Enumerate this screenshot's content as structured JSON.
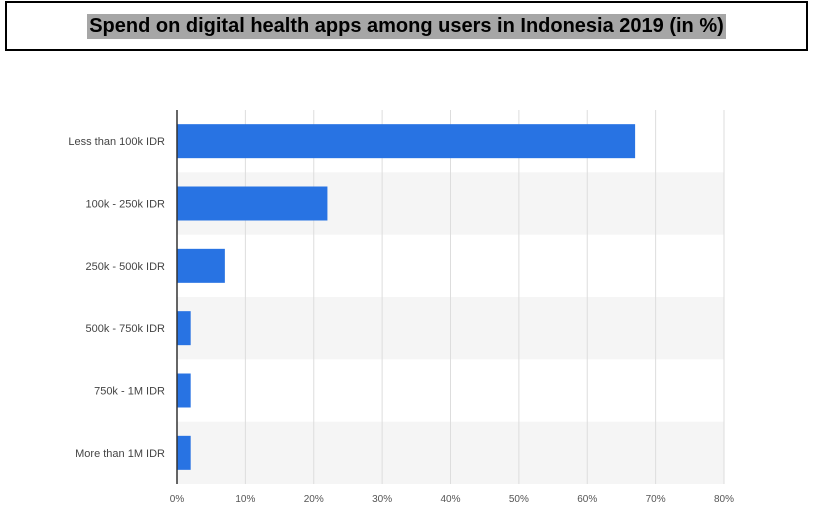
{
  "title": "Spend on digital health apps among users in Indonesia 2019 (in %)",
  "colors": {
    "bar": "#2873e3",
    "stripe": "#f5f5f5",
    "grid": "#dddddd",
    "axis": "#333333"
  },
  "chart_data": {
    "type": "bar",
    "orientation": "horizontal",
    "title": "Spend on digital health apps among users in Indonesia 2019 (in %)",
    "categories": [
      "Less than 100k IDR",
      "100k - 250k IDR",
      "250k - 500k IDR",
      "500k - 750k IDR",
      "750k - 1M IDR",
      "More than 1M IDR"
    ],
    "values": [
      67,
      22,
      7,
      2,
      2,
      2
    ],
    "xlim": [
      0,
      80
    ],
    "xticks": [
      0,
      10,
      20,
      30,
      40,
      50,
      60,
      70,
      80
    ],
    "xtick_labels": [
      "0%",
      "10%",
      "20%",
      "30%",
      "40%",
      "50%",
      "60%",
      "70%",
      "80%"
    ],
    "grid": true,
    "xlabel": "",
    "ylabel": ""
  }
}
